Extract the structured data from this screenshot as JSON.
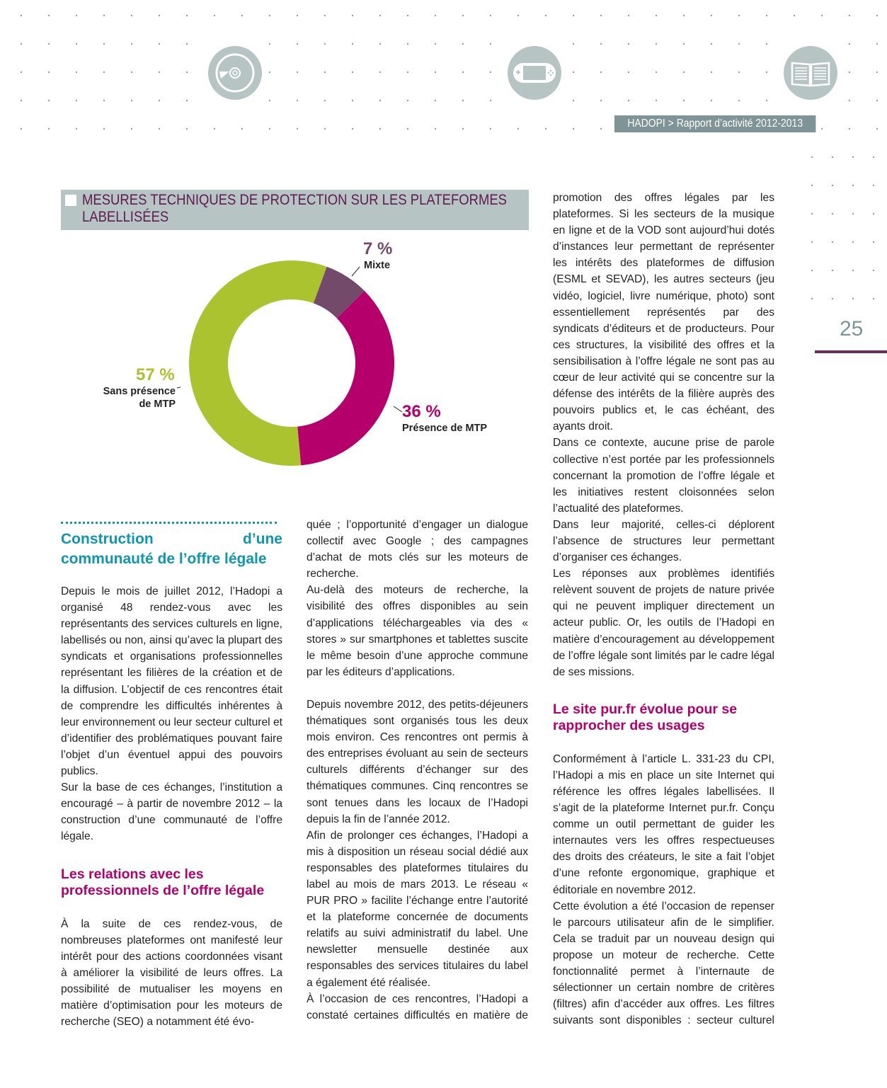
{
  "header": {
    "icons": [
      "disc-icon",
      "game-console-icon",
      "book-icon"
    ],
    "running_head": "HADOPI > Rapport d’activité 2012-2013",
    "page_number": "25"
  },
  "colors": {
    "green": "#abc32f",
    "magenta": "#b5006b",
    "purple": "#734a69",
    "teal": "#0e97ad",
    "gray": "#b7c4c4"
  },
  "chart_data": {
    "type": "pie",
    "title": "MESURES TECHNIQUES DE PROTECTION SUR LES PLATEFORMES LABELLISÉES",
    "donut": true,
    "slices": [
      {
        "label": "Mixte",
        "value": 7,
        "pct_label": "7 %",
        "color": "#734a69"
      },
      {
        "label": "Présence de MTP",
        "value": 36,
        "pct_label": "36 %",
        "color": "#b5006b"
      },
      {
        "label": "Sans présence de MTP",
        "value": 57,
        "pct_label": "57 %",
        "color": "#abc32f"
      }
    ]
  },
  "left": {
    "heading": "Construction d’une communauté de l’offre légale",
    "p1": "Depuis le mois de juillet 2012, l’Hadopi a organisé 48 rendez-vous avec les représentants des services culturels en ligne, labellisés ou non, ainsi qu’avec la plupart des syndicats et organisations professionnelles représentant les filières de la création et de la diffusion. L’objectif de ces rencontres était de comprendre les difficultés inhérentes à leur environnement ou leur secteur culturel et d’identifier des problématiques pouvant faire l’objet d’un éventuel appui des pouvoirs publics.",
    "p2": "Sur la base de ces échanges, l’institution a encouragé – à partir de novembre 2012 – la construction d’une communauté de l’offre légale.",
    "subheading": "Les relations avec les professionnels de l’offre légale",
    "p3": "À la suite de ces rendez-vous, de nombreuses plateformes ont manifesté leur intérêt pour des actions coordonnées visant à améliorer la visibilité de leurs offres. La possibilité de mutualiser les moyens en matière d’optimisation pour les moteurs de recherche (SEO) a notamment été évo-"
  },
  "middle": {
    "p1": "quée ; l’opportunité d’engager un dialogue collectif avec Google ; des campagnes d’achat de mots clés sur les moteurs de recherche.",
    "p2": "Au-delà des moteurs de recherche, la visibilité des offres disponibles au sein d’applications téléchargeables via des « stores » sur smartphones et tablettes suscite le même besoin d’une approche commune par les éditeurs d’applications.",
    "p3": "Depuis novembre 2012, des petits-déjeuners thématiques sont organisés tous les deux mois environ. Ces rencontres ont permis à des entreprises évoluant au sein de secteurs culturels différents d’échanger sur des thématiques communes. Cinq rencontres se sont tenues dans les locaux de l’Hadopi depuis la fin de l’année 2012.",
    "p4": "Afin de prolonger ces échanges, l’Hadopi a mis à disposition un réseau social dédié aux responsables des plateformes titulaires du label au mois de mars 2013. Le réseau « PUR PRO » facilite l’échange entre l’autorité et la plateforme concernée de documents relatifs au suivi administratif du label. Une newsletter mensuelle destinée aux responsables des services titulaires du label a également été réalisée.",
    "p5": "À l’occasion de ces rencontres, l’Hadopi a constaté certaines difficultés en matière de"
  },
  "right": {
    "p1": "promotion des offres légales par les plateformes. Si les secteurs de la musique en ligne et de la VOD sont aujourd’hui dotés d’instances leur permettant de représenter les intérêts des plateformes de diffusion (ESML et SEVAD), les autres secteurs (jeu vidéo, logiciel, livre numérique, photo) sont essentiellement représentés par des syndicats d’éditeurs et de producteurs. Pour ces structures, la visibilité des offres et la sensibilisation à l’offre légale ne sont pas au cœur de leur activité qui se concentre sur la défense des intérêts de la filière auprès des pouvoirs publics et, le cas échéant, des ayants droit.",
    "p2": "Dans ce contexte, aucune prise de parole collective n’est portée par les professionnels concernant la promotion de l’offre légale et les initiatives restent cloisonnées selon l’actualité des plateformes.",
    "p3": "Dans leur majorité, celles-ci déplorent l’absence de structures leur permettant d’organiser ces échanges.",
    "p4": "Les réponses aux problèmes identifiés relèvent souvent de projets de nature privée qui ne peuvent impliquer directement un acteur public. Or, les outils de l’Hadopi en matière d’encouragement au développement de l’offre légale sont limités par le cadre légal de ses missions.",
    "subheading": "Le site pur.fr évolue pour se rapprocher des usages",
    "p5": "Conformément à l’article L. 331-23 du CPI, l’Hadopi a mis en place un site Internet qui référence les offres légales labellisées. Il s’agit de la plateforme Internet pur.fr. Conçu comme un outil permettant de guider les internautes vers les offres respectueuses des droits des créateurs, le site a fait l’objet d’une refonte ergonomique, graphique et éditoriale en novembre 2012.",
    "p6": "Cette évolution a été l’occasion de repenser le parcours utilisateur afin de le simplifier. Cela se traduit par un nouveau design qui propose un moteur de recherche. Cette fonctionnalité permet à l’internaute de sélectionner un certain nombre de critères (filtres) afin d’accéder aux offres. Les filtres suivants sont disponibles : secteur culturel"
  }
}
